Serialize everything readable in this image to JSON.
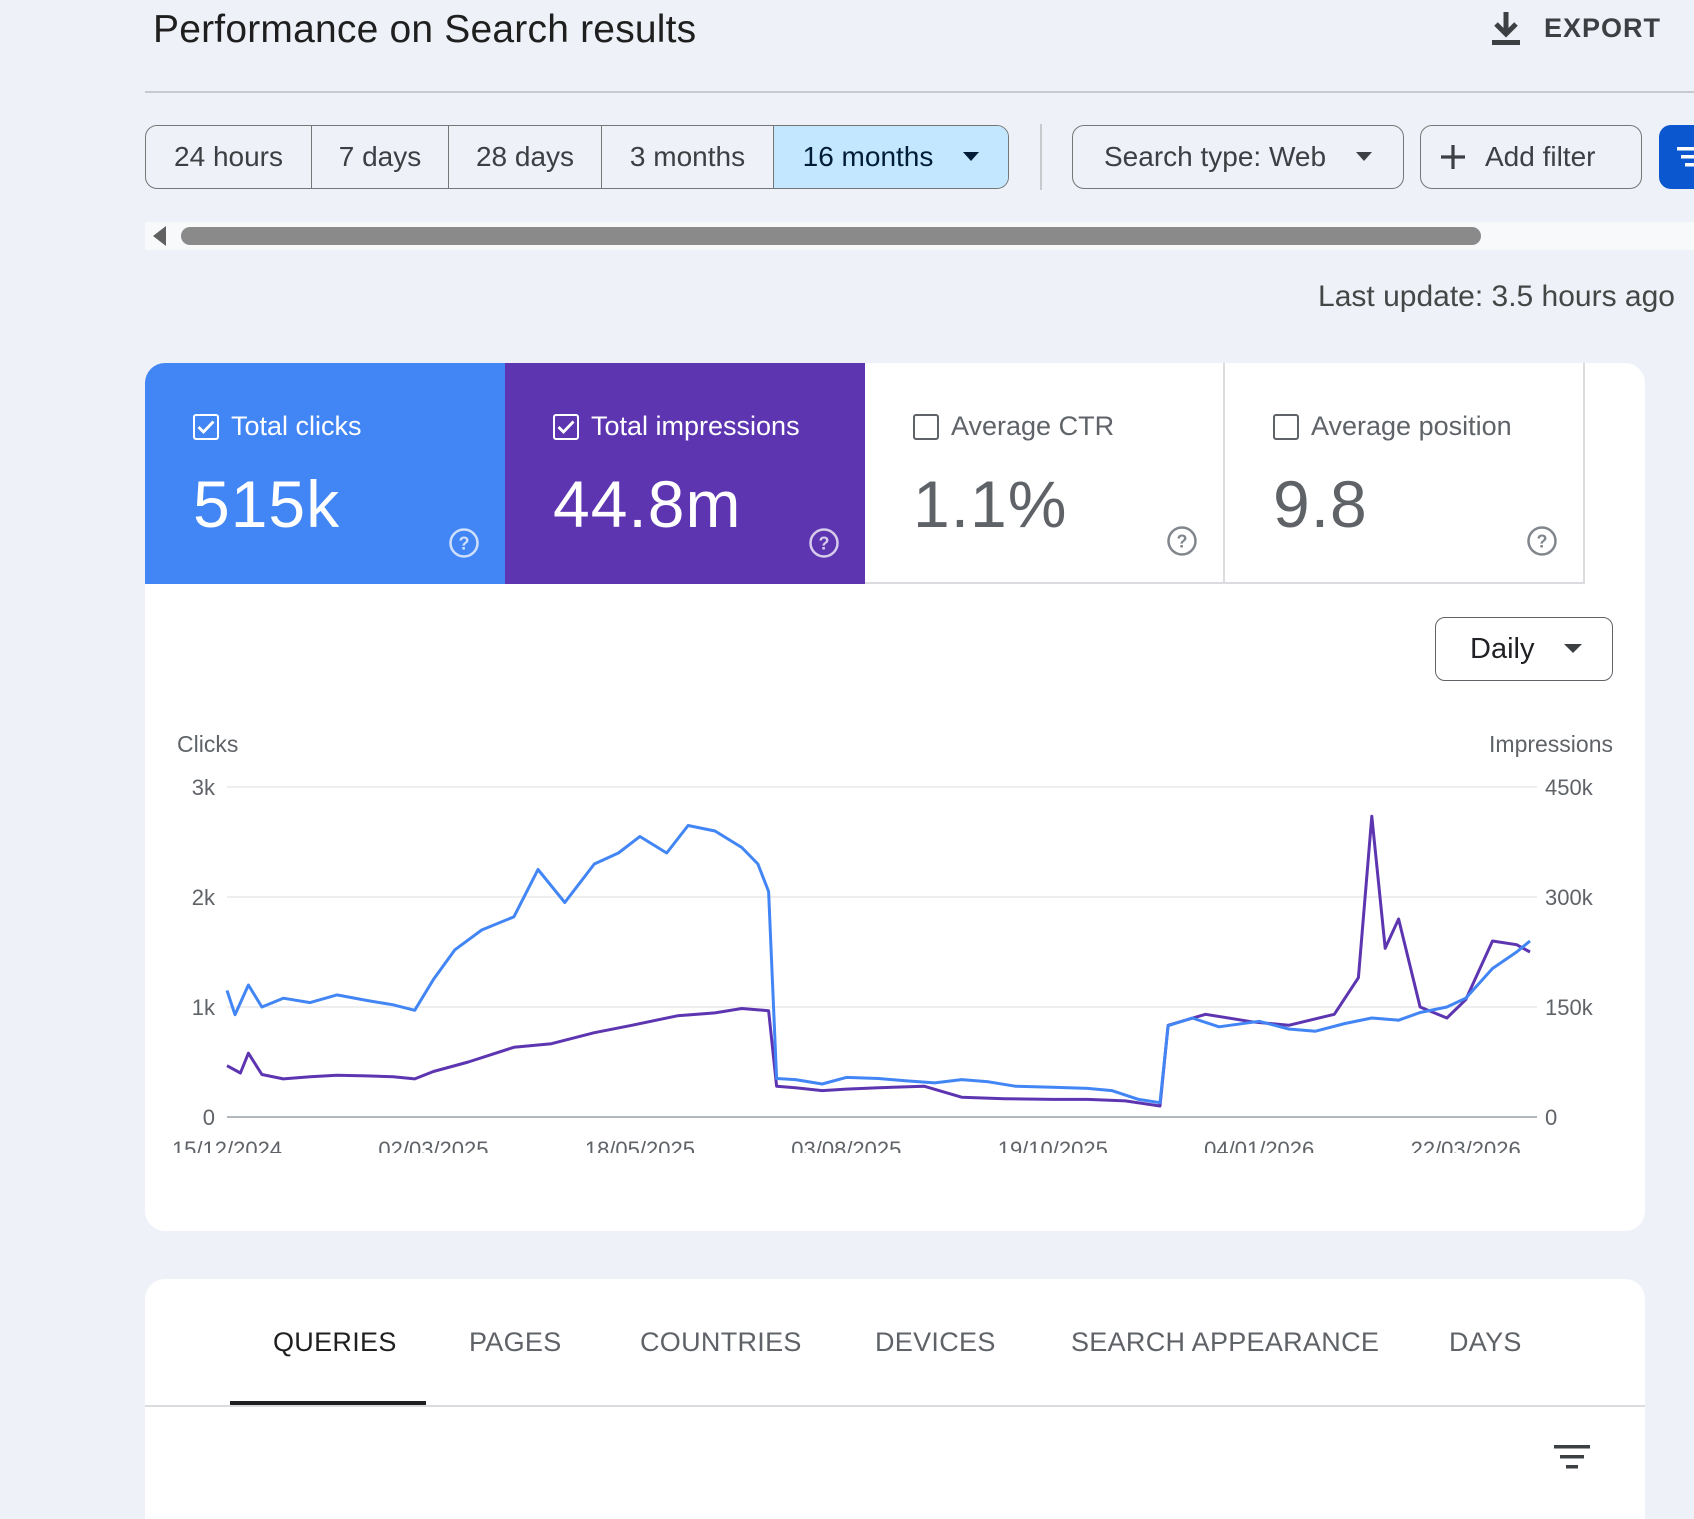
{
  "header": {
    "title": "Performance on Search results",
    "export_label": "EXPORT"
  },
  "date_range": {
    "options": [
      "24 hours",
      "7 days",
      "28 days",
      "3 months",
      "16 months"
    ],
    "selected": "16 months"
  },
  "filters": {
    "search_type_label": "Search type: Web",
    "add_filter_label": "Add filter"
  },
  "last_update": "Last update: 3.5 hours ago",
  "metrics": [
    {
      "label": "Total clicks",
      "value": "515k",
      "checked": true,
      "color": "#4285f4"
    },
    {
      "label": "Total impressions",
      "value": "44.8m",
      "checked": true,
      "color": "#5e35b1"
    },
    {
      "label": "Average CTR",
      "value": "1.1%",
      "checked": false
    },
    {
      "label": "Average position",
      "value": "9.8",
      "checked": false
    }
  ],
  "granularity": "Daily",
  "chart_data": {
    "type": "line",
    "ylabel_left": "Clicks",
    "ylabel_right": "Impressions",
    "y_left_ticks": [
      "0",
      "1k",
      "2k",
      "3k"
    ],
    "y_right_ticks": [
      "0",
      "150k",
      "300k",
      "450k"
    ],
    "y_left_range": [
      0,
      3000
    ],
    "y_right_range": [
      0,
      450000
    ],
    "x_tick_labels": [
      "15/12/2024",
      "02/03/2025",
      "18/05/2025",
      "03/08/2025",
      "19/10/2025",
      "04/01/2026",
      "22/03/2026"
    ],
    "x_range": [
      "15/12/2024",
      "15/04/2026"
    ],
    "grid": true,
    "series": [
      {
        "name": "Clicks",
        "axis": "left",
        "color": "#4285f4",
        "points": [
          [
            "15/12/2024",
            1150
          ],
          [
            "18/12/2024",
            930
          ],
          [
            "23/12/2024",
            1200
          ],
          [
            "28/12/2024",
            1000
          ],
          [
            "05/01/2025",
            1080
          ],
          [
            "15/01/2025",
            1040
          ],
          [
            "25/01/2025",
            1110
          ],
          [
            "05/02/2025",
            1060
          ],
          [
            "15/02/2025",
            1020
          ],
          [
            "23/02/2025",
            970
          ],
          [
            "02/03/2025",
            1250
          ],
          [
            "10/03/2025",
            1520
          ],
          [
            "20/03/2025",
            1700
          ],
          [
            "01/04/2025",
            1820
          ],
          [
            "10/04/2025",
            2250
          ],
          [
            "20/04/2025",
            1950
          ],
          [
            "01/05/2025",
            2300
          ],
          [
            "10/05/2025",
            2400
          ],
          [
            "18/05/2025",
            2550
          ],
          [
            "28/05/2025",
            2400
          ],
          [
            "05/06/2025",
            2650
          ],
          [
            "15/06/2025",
            2600
          ],
          [
            "25/06/2025",
            2450
          ],
          [
            "01/07/2025",
            2300
          ],
          [
            "05/07/2025",
            2050
          ],
          [
            "08/07/2025",
            350
          ],
          [
            "15/07/2025",
            340
          ],
          [
            "25/07/2025",
            300
          ],
          [
            "03/08/2025",
            360
          ],
          [
            "15/08/2025",
            350
          ],
          [
            "25/08/2025",
            330
          ],
          [
            "05/09/2025",
            310
          ],
          [
            "15/09/2025",
            340
          ],
          [
            "25/09/2025",
            320
          ],
          [
            "05/10/2025",
            280
          ],
          [
            "19/10/2025",
            270
          ],
          [
            "01/11/2025",
            260
          ],
          [
            "10/11/2025",
            240
          ],
          [
            "20/11/2025",
            160
          ],
          [
            "28/11/2025",
            130
          ],
          [
            "01/12/2025",
            830
          ],
          [
            "10/12/2025",
            900
          ],
          [
            "20/12/2025",
            820
          ],
          [
            "04/01/2026",
            870
          ],
          [
            "15/01/2026",
            800
          ],
          [
            "25/01/2026",
            780
          ],
          [
            "05/02/2026",
            850
          ],
          [
            "15/02/2026",
            900
          ],
          [
            "25/02/2026",
            880
          ],
          [
            "05/03/2026",
            950
          ],
          [
            "15/03/2026",
            1000
          ],
          [
            "22/03/2026",
            1080
          ],
          [
            "01/04/2026",
            1350
          ],
          [
            "10/04/2026",
            1500
          ],
          [
            "15/04/2026",
            1600
          ]
        ]
      },
      {
        "name": "Impressions",
        "axis": "right",
        "color": "#5e35b1",
        "points": [
          [
            "15/12/2024",
            70000
          ],
          [
            "20/12/2024",
            60000
          ],
          [
            "23/12/2024",
            87000
          ],
          [
            "28/12/2024",
            58000
          ],
          [
            "05/01/2025",
            52000
          ],
          [
            "15/01/2025",
            55000
          ],
          [
            "25/01/2025",
            57000
          ],
          [
            "05/02/2025",
            56000
          ],
          [
            "15/02/2025",
            55000
          ],
          [
            "23/02/2025",
            52000
          ],
          [
            "02/03/2025",
            62000
          ],
          [
            "15/03/2025",
            75000
          ],
          [
            "01/04/2025",
            95000
          ],
          [
            "15/04/2025",
            100000
          ],
          [
            "01/05/2025",
            115000
          ],
          [
            "15/05/2025",
            125000
          ],
          [
            "01/06/2025",
            138000
          ],
          [
            "15/06/2025",
            142000
          ],
          [
            "25/06/2025",
            148000
          ],
          [
            "05/07/2025",
            145000
          ],
          [
            "08/07/2025",
            42000
          ],
          [
            "15/07/2025",
            40000
          ],
          [
            "25/07/2025",
            36000
          ],
          [
            "03/08/2025",
            38000
          ],
          [
            "15/08/2025",
            40000
          ],
          [
            "01/09/2025",
            42000
          ],
          [
            "15/09/2025",
            27000
          ],
          [
            "01/10/2025",
            25000
          ],
          [
            "19/10/2025",
            24000
          ],
          [
            "01/11/2025",
            24000
          ],
          [
            "15/11/2025",
            22000
          ],
          [
            "28/11/2025",
            15000
          ],
          [
            "01/12/2025",
            125000
          ],
          [
            "15/12/2025",
            140000
          ],
          [
            "01/01/2026",
            130000
          ],
          [
            "15/01/2026",
            125000
          ],
          [
            "01/02/2026",
            140000
          ],
          [
            "10/02/2026",
            190000
          ],
          [
            "15/02/2026",
            410000
          ],
          [
            "20/02/2026",
            230000
          ],
          [
            "25/02/2026",
            270000
          ],
          [
            "05/03/2026",
            150000
          ],
          [
            "15/03/2026",
            135000
          ],
          [
            "22/03/2026",
            160000
          ],
          [
            "01/04/2026",
            240000
          ],
          [
            "10/04/2026",
            235000
          ],
          [
            "15/04/2026",
            225000
          ]
        ]
      }
    ]
  },
  "tabs": [
    "QUERIES",
    "PAGES",
    "COUNTRIES",
    "DEVICES",
    "SEARCH APPEARANCE",
    "DAYS"
  ],
  "active_tab": "QUERIES"
}
